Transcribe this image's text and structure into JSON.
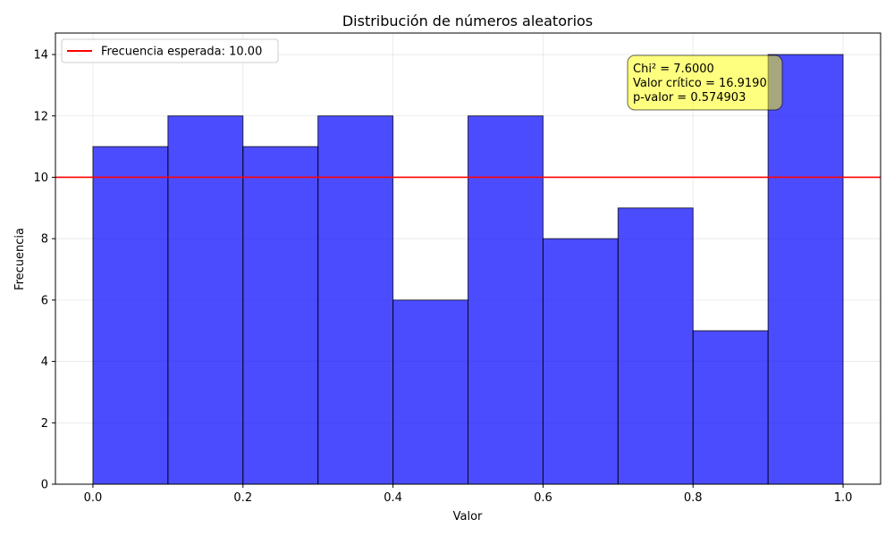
{
  "chart_data": {
    "type": "bar",
    "title": "Distribución de números aleatorios",
    "xlabel": "Valor",
    "ylabel": "Frecuencia",
    "bin_edges": [
      0.0,
      0.1,
      0.2,
      0.3,
      0.4,
      0.5,
      0.6,
      0.7,
      0.8,
      0.9,
      1.0
    ],
    "values": [
      11,
      12,
      11,
      12,
      6,
      12,
      8,
      9,
      5,
      14
    ],
    "xlim": [
      -0.05,
      1.05
    ],
    "ylim": [
      0,
      14.7
    ],
    "xticks": [
      0.0,
      0.2,
      0.4,
      0.6,
      0.8,
      1.0
    ],
    "xtick_labels": [
      "0.0",
      "0.2",
      "0.4",
      "0.6",
      "0.8",
      "1.0"
    ],
    "yticks": [
      0,
      2,
      4,
      6,
      8,
      10,
      12,
      14
    ],
    "ytick_labels": [
      "0",
      "2",
      "4",
      "6",
      "8",
      "10",
      "12",
      "14"
    ],
    "grid": true,
    "bar_color": "#0000ff",
    "bar_edge_color": "#000000",
    "expected_line": {
      "value": 10,
      "color": "#ff0000",
      "label": "Frecuencia esperada: 10.00"
    },
    "legend_position": "upper left",
    "annotation": {
      "lines": [
        "Chi² = 7.6000",
        "Valor crítico = 16.9190",
        "p-valor = 0.574903"
      ],
      "background": "#ffff00",
      "position": "upper right"
    }
  }
}
